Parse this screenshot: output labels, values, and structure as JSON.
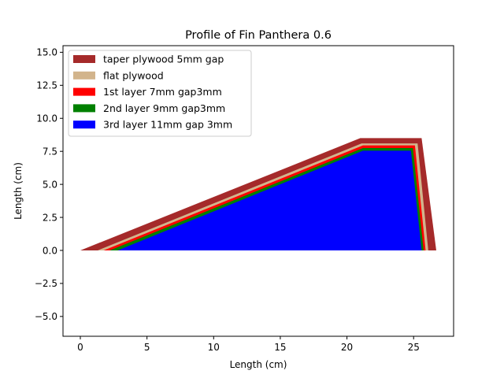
{
  "chart_data": {
    "type": "area",
    "title": "Profile of Fin Panthera 0.6",
    "xlabel": "Length (cm)",
    "ylabel": "Length (cm)",
    "xlim": [
      -1.3,
      28.0
    ],
    "ylim": [
      -6.5,
      15.5
    ],
    "xticks": [
      0,
      5,
      10,
      15,
      20,
      25
    ],
    "yticks": [
      -5.0,
      -2.5,
      0.0,
      2.5,
      5.0,
      7.5,
      10.0,
      12.5,
      15.0
    ],
    "xtick_labels": [
      "0",
      "5",
      "10",
      "15",
      "20",
      "25"
    ],
    "ytick_labels": [
      "−5.0",
      "−2.5",
      "0.0",
      "2.5",
      "5.0",
      "7.5",
      "10.0",
      "12.5",
      "15.0"
    ],
    "grid": false,
    "legend_position": "top-left",
    "series": [
      {
        "name": "taper plywood 5mm gap",
        "color": "#a52a2a",
        "x": [
          0,
          21.0,
          25.6,
          26.7,
          0
        ],
        "y": [
          0,
          8.5,
          8.5,
          0,
          0
        ]
      },
      {
        "name": "flat plywood",
        "color": "#d2b48c",
        "x": [
          1.3,
          21.1,
          25.3,
          26.1,
          1.3
        ],
        "y": [
          0,
          8.1,
          8.1,
          0,
          0
        ]
      },
      {
        "name": "1st layer 7mm gap3mm",
        "color": "#ff0000",
        "x": [
          1.75,
          21.2,
          25.1,
          25.9,
          1.75
        ],
        "y": [
          0,
          7.95,
          7.95,
          0,
          0
        ]
      },
      {
        "name": "2nd layer 9mm gap3mm",
        "color": "#008000",
        "x": [
          2.2,
          21.2,
          24.95,
          25.75,
          2.2
        ],
        "y": [
          0,
          7.75,
          7.75,
          0,
          0
        ]
      },
      {
        "name": "3rd layer 11mm gap 3mm",
        "color": "#0000ff",
        "x": [
          2.8,
          21.2,
          24.8,
          25.6,
          2.8
        ],
        "y": [
          0,
          7.55,
          7.55,
          0,
          0
        ]
      }
    ]
  }
}
